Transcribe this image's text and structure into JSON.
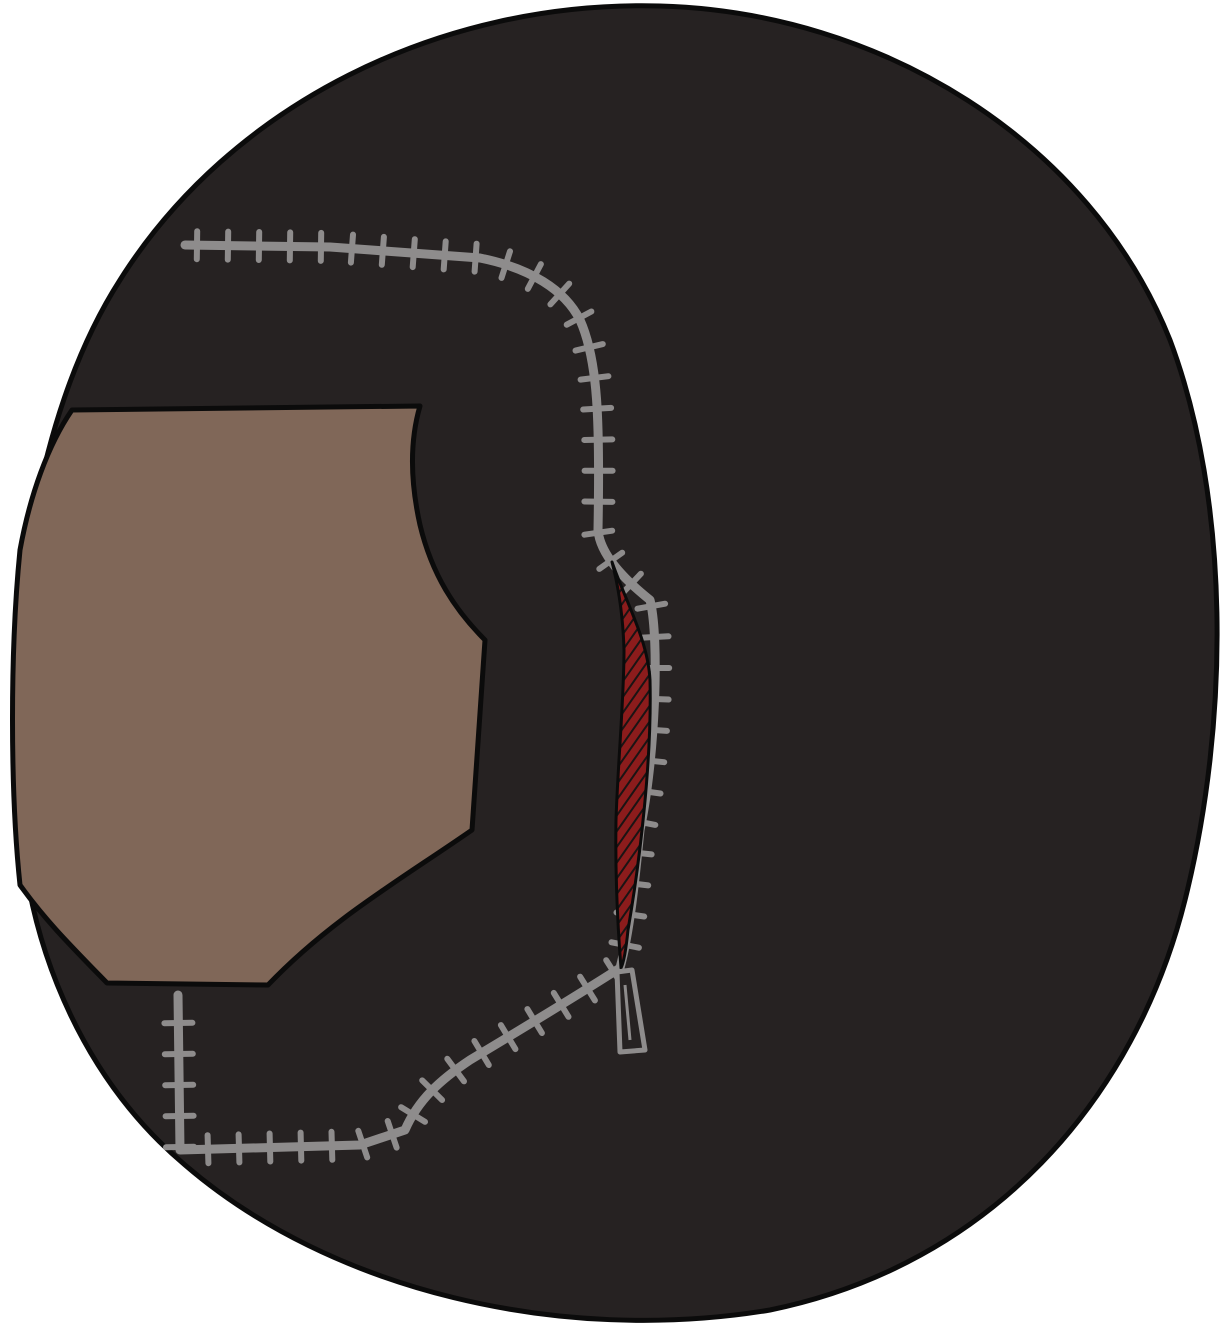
{
  "illustration": {
    "subject": "dark-hood-with-zipper",
    "colors": {
      "background": "#ffffff",
      "outline": "#0b0b0b",
      "hood": "#262222",
      "face": "#806758",
      "zipper": "#8e8c8c",
      "zipper_gap": "#8c1c1c",
      "zipper_gap_hatch": "#1a1414"
    }
  }
}
